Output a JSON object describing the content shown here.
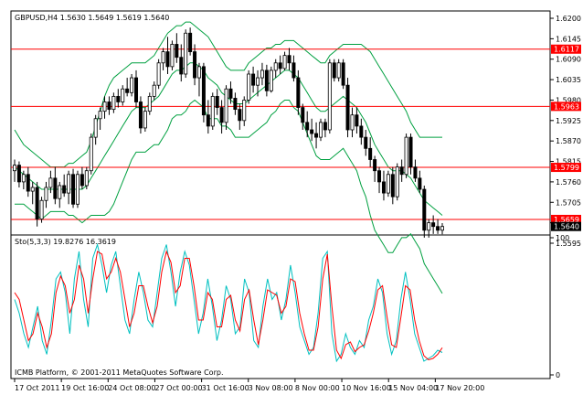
{
  "chart_data": [
    {
      "type": "line",
      "panel": "price",
      "header": "GBPUSD,H4  1.5630 1.5649 1.5619 1.5640",
      "y_range": [
        1.5595,
        1.62
      ],
      "y_ticks": [
        "1.6200",
        "1.6145",
        "1.6090",
        "1.6035",
        "1.5980",
        "1.5925",
        "1.5870",
        "1.5815",
        "1.5760",
        "1.5705",
        "1.5650",
        "1.5595"
      ],
      "horizontal_lines": [
        {
          "value": 1.6117,
          "label": "1.6117"
        },
        {
          "value": 1.5963,
          "label": "1.5963"
        },
        {
          "value": 1.5799,
          "label": "1.5799"
        },
        {
          "value": 1.5659,
          "label": "1.5659"
        }
      ],
      "current_price": {
        "value": 1.564,
        "label": "1.5640"
      },
      "ohlc_bars": [
        [
          1.579,
          1.582,
          1.576,
          1.5805
        ],
        [
          1.5805,
          1.5815,
          1.5745,
          1.576
        ],
        [
          1.576,
          1.579,
          1.574,
          1.578
        ],
        [
          1.578,
          1.58,
          1.572,
          1.5735
        ],
        [
          1.5735,
          1.576,
          1.57,
          1.5745
        ],
        [
          1.5745,
          1.576,
          1.564,
          1.566
        ],
        [
          1.566,
          1.572,
          1.565,
          1.571
        ],
        [
          1.571,
          1.576,
          1.569,
          1.5745
        ],
        [
          1.5745,
          1.579,
          1.573,
          1.577
        ],
        [
          1.577,
          1.58,
          1.57,
          1.5715
        ],
        [
          1.5715,
          1.576,
          1.569,
          1.575
        ],
        [
          1.575,
          1.578,
          1.572,
          1.573
        ],
        [
          1.573,
          1.579,
          1.57,
          1.578
        ],
        [
          1.578,
          1.5795,
          1.569,
          1.57
        ],
        [
          1.57,
          1.579,
          1.569,
          1.578
        ],
        [
          1.578,
          1.58,
          1.574,
          1.575
        ],
        [
          1.575,
          1.58,
          1.574,
          1.579
        ],
        [
          1.579,
          1.589,
          1.578,
          1.588
        ],
        [
          1.588,
          1.594,
          1.586,
          1.593
        ],
        [
          1.593,
          1.596,
          1.59,
          1.595
        ],
        [
          1.595,
          1.599,
          1.593,
          1.5975
        ],
        [
          1.5975,
          1.599,
          1.594,
          1.5955
        ],
        [
          1.5955,
          1.6,
          1.5945,
          1.599
        ],
        [
          1.599,
          1.601,
          1.596,
          1.5975
        ],
        [
          1.5975,
          1.602,
          1.5965,
          1.601
        ],
        [
          1.601,
          1.604,
          1.599,
          1.6
        ],
        [
          1.6,
          1.605,
          1.599,
          1.604
        ],
        [
          1.604,
          1.606,
          1.596,
          1.5975
        ],
        [
          1.5975,
          1.599,
          1.589,
          1.5905
        ],
        [
          1.5905,
          1.596,
          1.5895,
          1.595
        ],
        [
          1.595,
          1.6,
          1.594,
          1.599
        ],
        [
          1.599,
          1.603,
          1.598,
          1.602
        ],
        [
          1.602,
          1.609,
          1.601,
          1.608
        ],
        [
          1.608,
          1.612,
          1.606,
          1.611
        ],
        [
          1.611,
          1.615,
          1.605,
          1.607
        ],
        [
          1.607,
          1.614,
          1.606,
          1.613
        ],
        [
          1.613,
          1.616,
          1.608,
          1.6095
        ],
        [
          1.6095,
          1.613,
          1.603,
          1.605
        ],
        [
          1.605,
          1.617,
          1.604,
          1.616
        ],
        [
          1.616,
          1.6175,
          1.61,
          1.611
        ],
        [
          1.611,
          1.613,
          1.602,
          1.604
        ],
        [
          1.604,
          1.608,
          1.599,
          1.607
        ],
        [
          1.607,
          1.608,
          1.592,
          1.594
        ],
        [
          1.594,
          1.598,
          1.589,
          1.591
        ],
        [
          1.591,
          1.6,
          1.59,
          1.599
        ],
        [
          1.599,
          1.601,
          1.594,
          1.596
        ],
        [
          1.596,
          1.598,
          1.589,
          1.592
        ],
        [
          1.592,
          1.602,
          1.59,
          1.601
        ],
        [
          1.601,
          1.603,
          1.597,
          1.5985
        ],
        [
          1.5985,
          1.6,
          1.594,
          1.5955
        ],
        [
          1.5955,
          1.597,
          1.59,
          1.5925
        ],
        [
          1.5925,
          1.599,
          1.591,
          1.598
        ],
        [
          1.598,
          1.606,
          1.597,
          1.605
        ],
        [
          1.605,
          1.607,
          1.6,
          1.602
        ],
        [
          1.602,
          1.606,
          1.599,
          1.604
        ],
        [
          1.604,
          1.608,
          1.602,
          1.606
        ],
        [
          1.606,
          1.6075,
          1.599,
          1.6005
        ],
        [
          1.6005,
          1.607,
          1.6,
          1.606
        ],
        [
          1.606,
          1.609,
          1.604,
          1.608
        ],
        [
          1.608,
          1.61,
          1.605,
          1.6065
        ],
        [
          1.6065,
          1.611,
          1.606,
          1.61
        ],
        [
          1.61,
          1.612,
          1.606,
          1.608
        ],
        [
          1.608,
          1.61,
          1.603,
          1.604
        ],
        [
          1.604,
          1.606,
          1.594,
          1.596
        ],
        [
          1.596,
          1.597,
          1.59,
          1.592
        ],
        [
          1.592,
          1.595,
          1.588,
          1.59
        ],
        [
          1.59,
          1.593,
          1.587,
          1.589
        ],
        [
          1.589,
          1.592,
          1.585,
          1.588
        ],
        [
          1.588,
          1.593,
          1.587,
          1.592
        ],
        [
          1.592,
          1.593,
          1.588,
          1.59
        ],
        [
          1.59,
          1.609,
          1.589,
          1.608
        ],
        [
          1.608,
          1.609,
          1.603,
          1.604
        ],
        [
          1.604,
          1.609,
          1.603,
          1.608
        ],
        [
          1.608,
          1.609,
          1.601,
          1.602
        ],
        [
          1.602,
          1.604,
          1.588,
          1.59
        ],
        [
          1.59,
          1.596,
          1.588,
          1.594
        ],
        [
          1.594,
          1.596,
          1.589,
          1.591
        ],
        [
          1.591,
          1.593,
          1.586,
          1.588
        ],
        [
          1.588,
          1.59,
          1.583,
          1.585
        ],
        [
          1.585,
          1.588,
          1.58,
          1.582
        ],
        [
          1.582,
          1.583,
          1.576,
          1.579
        ],
        [
          1.579,
          1.58,
          1.573,
          1.576
        ],
        [
          1.576,
          1.579,
          1.571,
          1.573
        ],
        [
          1.573,
          1.579,
          1.572,
          1.578
        ],
        [
          1.578,
          1.58,
          1.57,
          1.572
        ],
        [
          1.572,
          1.581,
          1.571,
          1.58
        ],
        [
          1.58,
          1.582,
          1.576,
          1.578
        ],
        [
          1.578,
          1.589,
          1.577,
          1.588
        ],
        [
          1.588,
          1.589,
          1.578,
          1.58
        ],
        [
          1.58,
          1.582,
          1.576,
          1.577
        ],
        [
          1.577,
          1.579,
          1.573,
          1.574
        ],
        [
          1.574,
          1.575,
          1.561,
          1.563
        ],
        [
          1.563,
          1.566,
          1.561,
          1.565
        ],
        [
          1.565,
          1.567,
          1.562,
          1.564
        ],
        [
          1.564,
          1.566,
          1.562,
          1.563
        ],
        [
          1.563,
          1.5649,
          1.5619,
          1.564
        ]
      ],
      "bollinger_upper": [
        1.59,
        1.588,
        1.586,
        1.585,
        1.584,
        1.583,
        1.582,
        1.581,
        1.58,
        1.58,
        1.58,
        1.58,
        1.581,
        1.581,
        1.582,
        1.583,
        1.584,
        1.587,
        1.591,
        1.595,
        1.599,
        1.602,
        1.604,
        1.605,
        1.606,
        1.607,
        1.608,
        1.608,
        1.608,
        1.608,
        1.609,
        1.61,
        1.612,
        1.614,
        1.616,
        1.617,
        1.618,
        1.618,
        1.619,
        1.619,
        1.618,
        1.617,
        1.616,
        1.615,
        1.613,
        1.611,
        1.609,
        1.607,
        1.606,
        1.606,
        1.606,
        1.606,
        1.608,
        1.609,
        1.61,
        1.611,
        1.612,
        1.612,
        1.613,
        1.613,
        1.614,
        1.614,
        1.614,
        1.613,
        1.612,
        1.611,
        1.61,
        1.609,
        1.608,
        1.608,
        1.61,
        1.611,
        1.612,
        1.613,
        1.613,
        1.613,
        1.613,
        1.613,
        1.612,
        1.611,
        1.609,
        1.607,
        1.605,
        1.603,
        1.601,
        1.599,
        1.597,
        1.595,
        1.592,
        1.59,
        1.588,
        1.588,
        1.588,
        1.588,
        1.588,
        1.588
      ],
      "bollinger_middle": [
        1.58,
        1.579,
        1.578,
        1.577,
        1.576,
        1.575,
        1.574,
        1.574,
        1.574,
        1.574,
        1.574,
        1.574,
        1.574,
        1.574,
        1.574,
        1.574,
        1.575,
        1.577,
        1.579,
        1.581,
        1.583,
        1.585,
        1.587,
        1.589,
        1.591,
        1.593,
        1.595,
        1.596,
        1.596,
        1.596,
        1.597,
        1.598,
        1.599,
        1.601,
        1.603,
        1.605,
        1.606,
        1.606,
        1.607,
        1.608,
        1.608,
        1.607,
        1.606,
        1.604,
        1.603,
        1.602,
        1.6,
        1.599,
        1.598,
        1.597,
        1.597,
        1.597,
        1.598,
        1.599,
        1.6,
        1.601,
        1.602,
        1.603,
        1.604,
        1.605,
        1.606,
        1.606,
        1.605,
        1.604,
        1.602,
        1.6,
        1.598,
        1.596,
        1.595,
        1.595,
        1.596,
        1.597,
        1.598,
        1.599,
        1.598,
        1.597,
        1.596,
        1.594,
        1.592,
        1.589,
        1.586,
        1.584,
        1.582,
        1.58,
        1.579,
        1.579,
        1.579,
        1.578,
        1.577,
        1.575,
        1.573,
        1.571,
        1.57,
        1.569,
        1.568,
        1.567
      ],
      "bollinger_lower": [
        1.57,
        1.57,
        1.57,
        1.569,
        1.568,
        1.567,
        1.566,
        1.567,
        1.568,
        1.568,
        1.568,
        1.568,
        1.567,
        1.567,
        1.566,
        1.565,
        1.566,
        1.567,
        1.567,
        1.567,
        1.567,
        1.568,
        1.57,
        1.573,
        1.576,
        1.579,
        1.582,
        1.584,
        1.584,
        1.584,
        1.585,
        1.586,
        1.586,
        1.588,
        1.59,
        1.593,
        1.594,
        1.594,
        1.595,
        1.597,
        1.598,
        1.597,
        1.596,
        1.593,
        1.593,
        1.593,
        1.591,
        1.591,
        1.59,
        1.588,
        1.588,
        1.588,
        1.588,
        1.589,
        1.59,
        1.591,
        1.592,
        1.594,
        1.595,
        1.597,
        1.598,
        1.598,
        1.596,
        1.595,
        1.592,
        1.589,
        1.586,
        1.583,
        1.582,
        1.582,
        1.582,
        1.583,
        1.584,
        1.585,
        1.583,
        1.581,
        1.579,
        1.575,
        1.572,
        1.567,
        1.563,
        1.561,
        1.559,
        1.557,
        1.557,
        1.559,
        1.561,
        1.561,
        1.562,
        1.56,
        1.558,
        1.554,
        1.552,
        1.55,
        1.548,
        1.546
      ],
      "colors": {
        "background": "#ffffff",
        "candle": "#000000",
        "bands": "#00a040",
        "levels": "#ff0000",
        "price_tag": "#000000",
        "level_tag": "#ff0000"
      }
    },
    {
      "type": "line",
      "panel": "oscillator",
      "header": "Sto(5,3,3) 19.8276 16.3619",
      "y_range": [
        0,
        100
      ],
      "y_ticks": [
        "100",
        "0"
      ],
      "series": [
        {
          "values": [
            55,
            45,
            30,
            20,
            35,
            50,
            25,
            15,
            40,
            70,
            75,
            60,
            30,
            70,
            90,
            55,
            35,
            85,
            95,
            80,
            60,
            80,
            90,
            65,
            40,
            30,
            55,
            75,
            60,
            40,
            35,
            60,
            85,
            95,
            75,
            50,
            75,
            90,
            80,
            55,
            30,
            45,
            70,
            50,
            25,
            40,
            65,
            55,
            30,
            35,
            70,
            60,
            25,
            20,
            50,
            70,
            55,
            60,
            40,
            55,
            80,
            60,
            35,
            25,
            15,
            20,
            45,
            85,
            90,
            30,
            10,
            15,
            30,
            20,
            15,
            25,
            20,
            40,
            50,
            70,
            60,
            30,
            15,
            25,
            55,
            75,
            55,
            30,
            20,
            10,
            12,
            14,
            18,
            16.36
          ]
        },
        {
          "values": [
            60,
            55,
            40,
            25,
            30,
            45,
            35,
            20,
            30,
            60,
            72,
            65,
            45,
            55,
            80,
            70,
            45,
            70,
            90,
            88,
            70,
            75,
            85,
            75,
            55,
            35,
            45,
            65,
            65,
            50,
            38,
            50,
            75,
            90,
            82,
            60,
            65,
            85,
            85,
            65,
            40,
            40,
            60,
            55,
            35,
            35,
            55,
            58,
            40,
            32,
            55,
            62,
            40,
            22,
            40,
            62,
            60,
            58,
            45,
            50,
            70,
            68,
            45,
            30,
            18,
            18,
            35,
            70,
            88,
            50,
            18,
            12,
            22,
            24,
            17,
            20,
            22,
            32,
            45,
            62,
            65,
            42,
            22,
            20,
            42,
            65,
            62,
            40,
            25,
            14,
            11,
            12,
            15,
            19.83
          ]
        }
      ],
      "colors": {
        "main": "#00c0c0",
        "signal": "#ff0000"
      }
    }
  ],
  "x_ticks": [
    "17 Oct 2011",
    "19 Oct 16:00",
    "24 Oct 08:00",
    "27 Oct 00:00",
    "31 Oct 16:00",
    "3 Nov 08:00",
    "8 Nov 00:00",
    "10 Nov 16:00",
    "15 Nov 04:00",
    "17 Nov 20:00"
  ],
  "footer": "ICMB Platform, © 2001-2011 MetaQuotes Software Corp."
}
